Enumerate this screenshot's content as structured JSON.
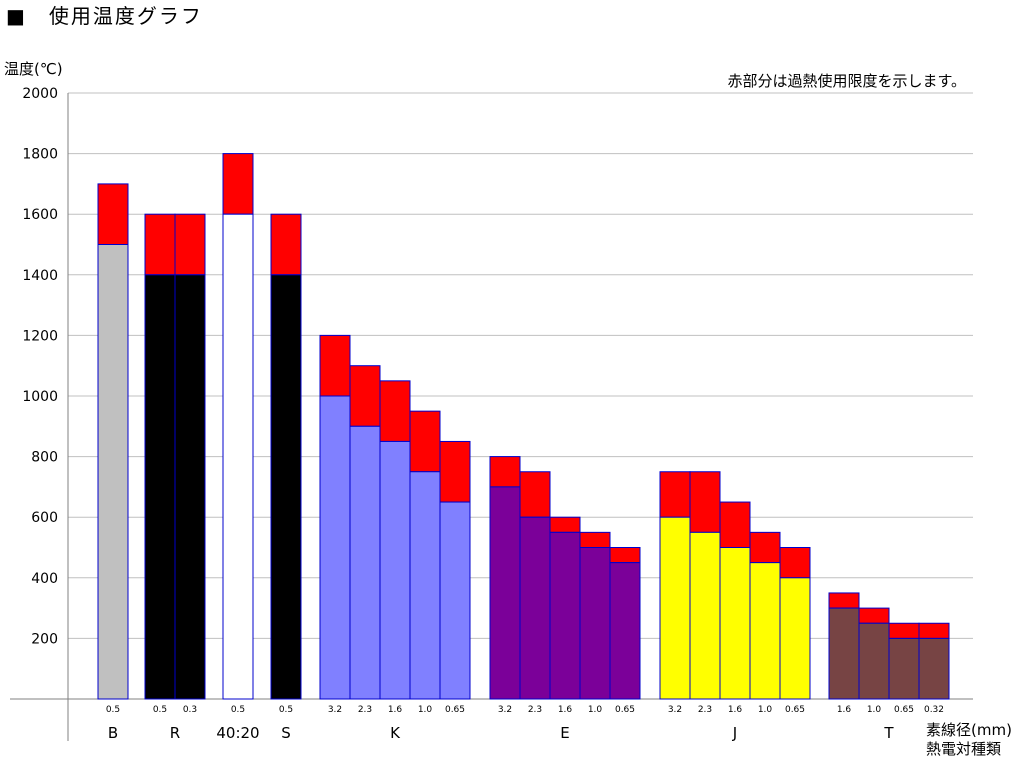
{
  "title": "■　使用温度グラフ",
  "chart_data": {
    "type": "bar",
    "ylabel": "温度(℃)",
    "note": "赤部分は過熱使用限度を示します。",
    "xlabel_top": "素線径(mm)",
    "xlabel_bottom": "熱電対種類",
    "ylim": [
      0,
      2000
    ],
    "yticks": [
      200,
      400,
      600,
      800,
      1000,
      1200,
      1400,
      1600,
      1800,
      2000
    ],
    "colors": {
      "overheat": "#ff0000",
      "B": "#c0c0c0",
      "R": "#000000",
      "40:20": "#ffffff",
      "S": "#000000",
      "K": "#8080ff",
      "E": "#7b0099",
      "J": "#ffff00",
      "T": "#774444",
      "border": "#0000cc",
      "grid": "#c0c0c0"
    },
    "groups": [
      {
        "name": "B",
        "bars": [
          {
            "d": "0.5",
            "normal": 1500,
            "overheat": 1700
          }
        ]
      },
      {
        "name": "R",
        "bars": [
          {
            "d": "0.5",
            "normal": 1400,
            "overheat": 1600
          },
          {
            "d": "0.3",
            "normal": 1400,
            "overheat": 1600
          }
        ]
      },
      {
        "name": "40:20",
        "bars": [
          {
            "d": "0.5",
            "normal": 1600,
            "overheat": 1800
          }
        ]
      },
      {
        "name": "S",
        "bars": [
          {
            "d": "0.5",
            "normal": 1400,
            "overheat": 1600
          }
        ]
      },
      {
        "name": "K",
        "bars": [
          {
            "d": "3.2",
            "normal": 1000,
            "overheat": 1200
          },
          {
            "d": "2.3",
            "normal": 900,
            "overheat": 1100
          },
          {
            "d": "1.6",
            "normal": 850,
            "overheat": 1050
          },
          {
            "d": "1.0",
            "normal": 750,
            "overheat": 950
          },
          {
            "d": "0.65",
            "normal": 650,
            "overheat": 850
          }
        ]
      },
      {
        "name": "E",
        "bars": [
          {
            "d": "3.2",
            "normal": 700,
            "overheat": 800
          },
          {
            "d": "2.3",
            "normal": 600,
            "overheat": 750
          },
          {
            "d": "1.6",
            "normal": 550,
            "overheat": 600
          },
          {
            "d": "1.0",
            "normal": 500,
            "overheat": 550
          },
          {
            "d": "0.65",
            "normal": 450,
            "overheat": 500
          }
        ]
      },
      {
        "name": "J",
        "bars": [
          {
            "d": "3.2",
            "normal": 600,
            "overheat": 750
          },
          {
            "d": "2.3",
            "normal": 550,
            "overheat": 750
          },
          {
            "d": "1.6",
            "normal": 500,
            "overheat": 650
          },
          {
            "d": "1.0",
            "normal": 450,
            "overheat": 550
          },
          {
            "d": "0.65",
            "normal": 400,
            "overheat": 500
          }
        ]
      },
      {
        "name": "T",
        "bars": [
          {
            "d": "1.6",
            "normal": 300,
            "overheat": 350
          },
          {
            "d": "1.0",
            "normal": 250,
            "overheat": 300
          },
          {
            "d": "0.65",
            "normal": 200,
            "overheat": 250
          },
          {
            "d": "0.32",
            "normal": 200,
            "overheat": 250
          }
        ]
      }
    ]
  }
}
